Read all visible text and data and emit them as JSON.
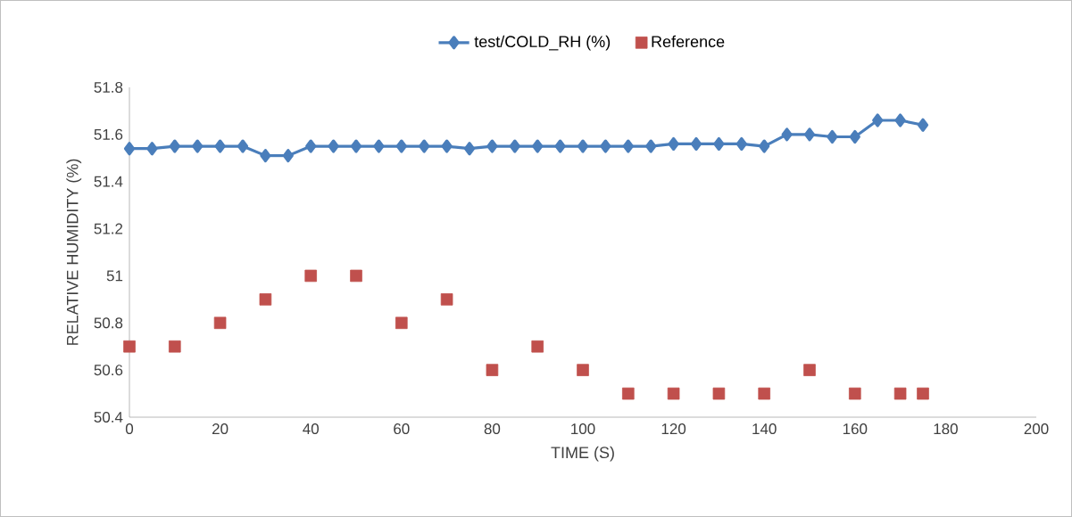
{
  "chart_data": {
    "type": "line",
    "xlabel": "TIME (S)",
    "ylabel": "RELATIVE HUMIDITY (%)",
    "xlim": [
      0,
      200
    ],
    "xticks": [
      0,
      20,
      40,
      60,
      80,
      100,
      120,
      140,
      160,
      180,
      200
    ],
    "ylim": [
      50.4,
      51.8
    ],
    "yticks": [
      50.4,
      50.6,
      50.8,
      51,
      51.2,
      51.4,
      51.6,
      51.8
    ],
    "grid": false,
    "legend": "top",
    "series": [
      {
        "name": "test/COLD_RH (%)",
        "marker": "diamond",
        "color": "#4a7ebb",
        "x": [
          0,
          5,
          10,
          15,
          20,
          25,
          30,
          35,
          40,
          45,
          50,
          55,
          60,
          65,
          70,
          75,
          80,
          85,
          90,
          95,
          100,
          105,
          110,
          115,
          120,
          125,
          130,
          135,
          140,
          145,
          150,
          155,
          160,
          165,
          170,
          175
        ],
        "values": [
          51.54,
          51.54,
          51.55,
          51.55,
          51.55,
          51.55,
          51.51,
          51.51,
          51.55,
          51.55,
          51.55,
          51.55,
          51.55,
          51.55,
          51.55,
          51.54,
          51.55,
          51.55,
          51.55,
          51.55,
          51.55,
          51.55,
          51.55,
          51.55,
          51.56,
          51.56,
          51.56,
          51.56,
          51.55,
          51.6,
          51.6,
          51.59,
          51.59,
          51.66,
          51.66,
          51.64
        ]
      },
      {
        "name": "Reference",
        "type": "scatter",
        "marker": "square",
        "color": "#c0504d",
        "x": [
          0,
          10,
          20,
          30,
          40,
          50,
          60,
          70,
          80,
          90,
          100,
          110,
          120,
          130,
          140,
          150,
          160,
          170,
          175
        ],
        "values": [
          50.7,
          50.7,
          50.8,
          50.9,
          51,
          51,
          50.8,
          50.9,
          50.6,
          50.7,
          50.6,
          50.5,
          50.5,
          50.5,
          50.5,
          50.6,
          50.5,
          50.5,
          50.5
        ]
      }
    ]
  }
}
